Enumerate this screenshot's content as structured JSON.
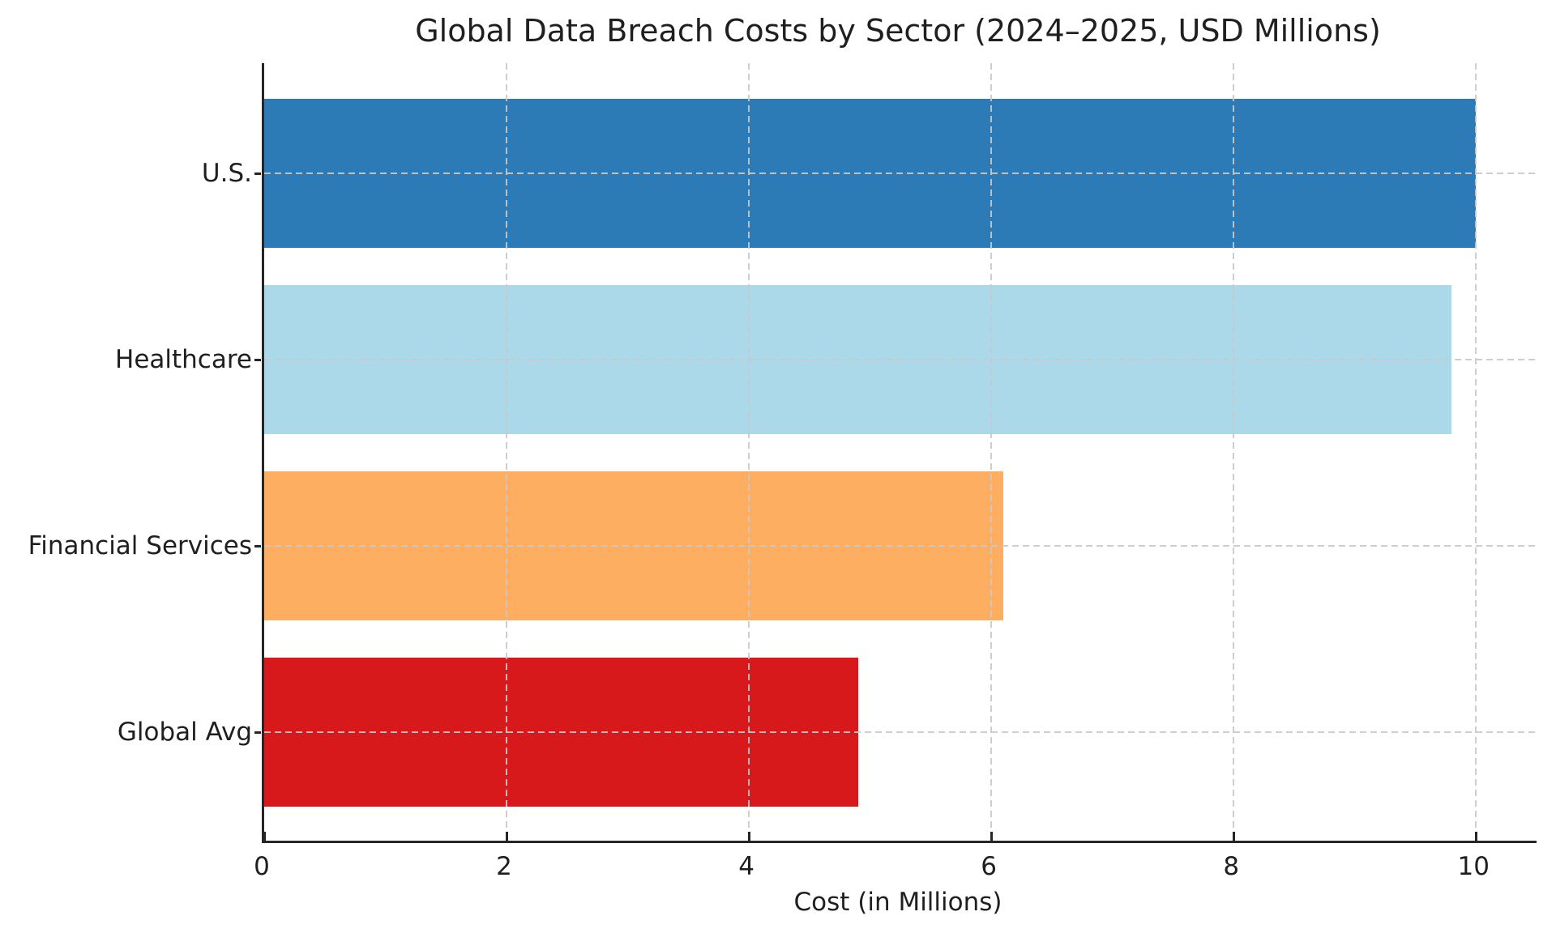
{
  "figure": {
    "background": "#ffffff",
    "text_color": "#1f1f1f",
    "grid_color": "#c9c9c9",
    "spine_color": "#262626"
  },
  "chart_data": {
    "type": "bar",
    "orientation": "horizontal",
    "title": "Global Data Breach Costs by Sector (2024–2025, USD Millions)",
    "xlabel": "Cost (in Millions)",
    "ylabel": "",
    "categories": [
      "U.S.",
      "Healthcare",
      "Financial Services",
      "Global Avg"
    ],
    "values": [
      10.0,
      9.8,
      6.1,
      4.9
    ],
    "bar_colors": [
      "#2c7bb6",
      "#abd9e9",
      "#fdae61",
      "#d7191c"
    ],
    "xticks": [
      0,
      2,
      4,
      6,
      8,
      10
    ],
    "xlim": [
      0,
      10.5
    ],
    "grid": {
      "visible": true,
      "style": "dashed",
      "axes": "both",
      "drawn_over_bars": true
    },
    "legend": {
      "visible": false
    }
  }
}
